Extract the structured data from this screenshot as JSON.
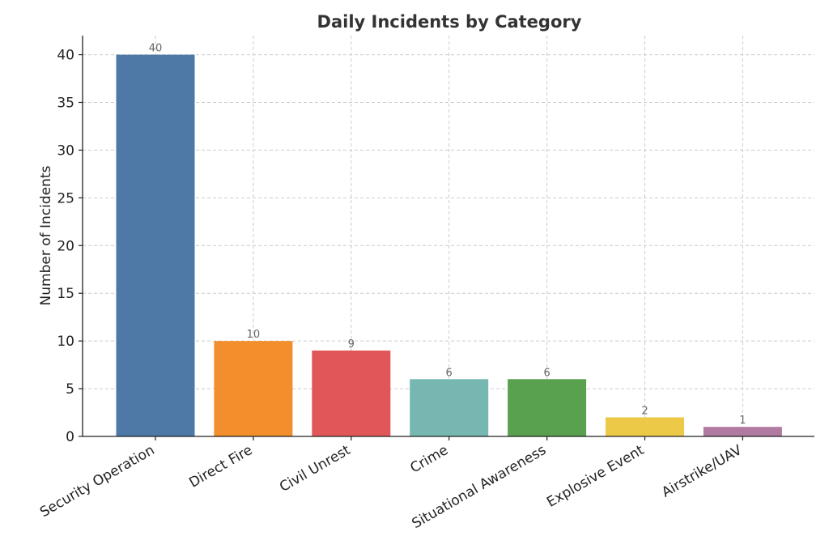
{
  "chart_data": {
    "type": "bar",
    "title": "Daily Incidents by Category",
    "xlabel": "",
    "ylabel": "Number of Incidents",
    "categories": [
      "Security Operation",
      "Direct Fire",
      "Civil Unrest",
      "Crime",
      "Situational Awareness",
      "Explosive Event",
      "Airstrike/UAV"
    ],
    "values": [
      40,
      10,
      9,
      6,
      6,
      2,
      1
    ],
    "colors": [
      "#4e79a7",
      "#f28e2b",
      "#e15759",
      "#76b7b2",
      "#59a14f",
      "#edc948",
      "#b07aa1"
    ],
    "ylim": [
      0,
      42
    ],
    "yticks": [
      0,
      5,
      10,
      15,
      20,
      25,
      30,
      35,
      40
    ],
    "grid": true,
    "data_labels": true
  }
}
